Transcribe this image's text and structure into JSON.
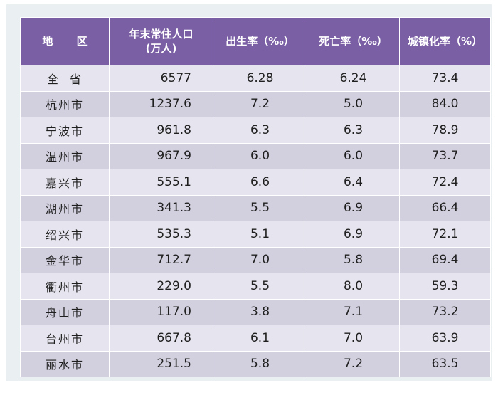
{
  "table": {
    "headers": [
      "地 区",
      "年末常住人口\n(万人)",
      "出生率（‰）",
      "死亡率（‰）",
      "城镇化率（%）"
    ],
    "rows": [
      [
        "全  省",
        "6577",
        "6.28",
        "6.24",
        "73.4"
      ],
      [
        "杭州市",
        "1237.6",
        "7.2",
        "5.0",
        "84.0"
      ],
      [
        "宁波市",
        "961.8",
        "6.3",
        "6.3",
        "78.9"
      ],
      [
        "温州市",
        "967.9",
        "6.0",
        "6.0",
        "73.7"
      ],
      [
        "嘉兴市",
        "555.1",
        "6.6",
        "6.4",
        "72.4"
      ],
      [
        "湖州市",
        "341.3",
        "5.5",
        "6.9",
        "66.4"
      ],
      [
        "绍兴市",
        "535.3",
        "5.1",
        "6.9",
        "72.1"
      ],
      [
        "金华市",
        "712.7",
        "7.0",
        "5.8",
        "69.4"
      ],
      [
        "衢州市",
        "229.0",
        "5.5",
        "8.0",
        "59.3"
      ],
      [
        "舟山市",
        "117.0",
        "3.8",
        "7.1",
        "73.2"
      ],
      [
        "台州市",
        "667.8",
        "6.1",
        "7.0",
        "63.9"
      ],
      [
        "丽水市",
        "251.5",
        "5.8",
        "7.2",
        "63.5"
      ]
    ]
  },
  "colors": {
    "header_bg": "#7a5fa5",
    "row_light": "#e6e4ee",
    "row_dark": "#d2d0df",
    "board_bg": "#eaf0f2"
  }
}
